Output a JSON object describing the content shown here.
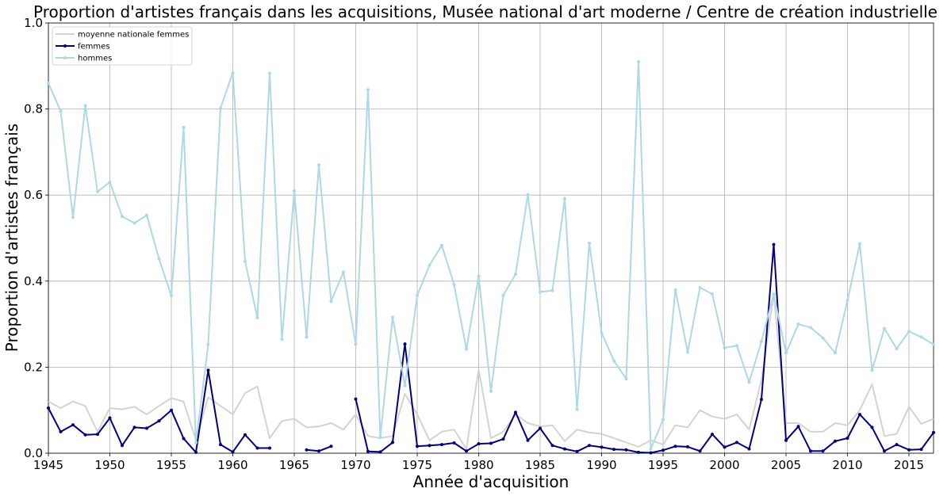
{
  "chart_data": {
    "type": "line",
    "title": "Proportion d'artistes français dans les acquisitions, Musée national d'art moderne / Centre de création industrielle",
    "xlabel": "Année d'acquisition",
    "ylabel": "Proportion d'artistes français",
    "xlim": [
      1945,
      2017
    ],
    "ylim": [
      0,
      1.0
    ],
    "xticks": [
      1945,
      1950,
      1955,
      1960,
      1965,
      1970,
      1975,
      1980,
      1985,
      1990,
      1995,
      2000,
      2005,
      2010,
      2015
    ],
    "xtick_labels": [
      "1945",
      "1950",
      "1955",
      "1960",
      "1965",
      "1970",
      "1975",
      "1980",
      "1985",
      "1990",
      "1995",
      "2000",
      "2005",
      "2010",
      "2015"
    ],
    "yticks": [
      0,
      0.2,
      0.4,
      0.6,
      0.8,
      1.0
    ],
    "ytick_labels": [
      "0.0",
      "0.2",
      "0.4",
      "0.6",
      "0.8",
      "1.0"
    ],
    "grid": true,
    "legend_position": "top-left",
    "series": [
      {
        "name": "moyenne nationale femmes",
        "color": "#d3d3d3",
        "markers": false,
        "x": [
          1945,
          1946,
          1947,
          1948,
          1949,
          1950,
          1951,
          1952,
          1953,
          1954,
          1955,
          1956,
          1957,
          1958,
          1959,
          1960,
          1961,
          1962,
          1963,
          1964,
          1965,
          1966,
          1967,
          1968,
          1969,
          1970,
          1971,
          1972,
          1973,
          1974,
          1975,
          1976,
          1977,
          1978,
          1979,
          1980,
          1981,
          1982,
          1983,
          1984,
          1985,
          1986,
          1987,
          1988,
          1989,
          1990,
          1991,
          1992,
          1993,
          1994,
          1995,
          1996,
          1997,
          1998,
          1999,
          2000,
          2001,
          2002,
          2003,
          2004,
          2005,
          2006,
          2007,
          2008,
          2009,
          2010,
          2011,
          2012,
          2013,
          2014,
          2015,
          2016,
          2017
        ],
        "y": [
          0.12,
          0.105,
          0.12,
          0.11,
          0.05,
          0.105,
          0.102,
          0.108,
          0.09,
          0.11,
          0.128,
          0.12,
          0.03,
          0.13,
          0.11,
          0.09,
          0.14,
          0.155,
          0.035,
          0.075,
          0.08,
          0.06,
          0.062,
          0.07,
          0.055,
          0.09,
          0.04,
          0.035,
          0.04,
          0.138,
          0.09,
          0.03,
          0.05,
          0.055,
          0.01,
          0.195,
          0.035,
          0.05,
          0.09,
          0.07,
          0.062,
          0.065,
          0.028,
          0.055,
          0.048,
          0.045,
          0.035,
          0.025,
          0.015,
          0.03,
          0.02,
          0.065,
          0.06,
          0.1,
          0.085,
          0.08,
          0.09,
          0.055,
          0.17,
          0.37,
          0.07,
          0.07,
          0.05,
          0.05,
          0.07,
          0.065,
          0.1,
          0.16,
          0.04,
          0.045,
          0.108,
          0.068,
          0.08
        ]
      },
      {
        "name": "femmes",
        "color": "#000080",
        "markers": true,
        "x": [
          1945,
          1946,
          1947,
          1948,
          1949,
          1950,
          1951,
          1952,
          1953,
          1954,
          1955,
          1956,
          1957,
          1958,
          1959,
          1960,
          1961,
          1962,
          1963,
          1964,
          1965,
          1966,
          1967,
          1968,
          1969,
          1970,
          1971,
          1972,
          1973,
          1974,
          1975,
          1976,
          1977,
          1978,
          1979,
          1980,
          1981,
          1982,
          1983,
          1984,
          1985,
          1986,
          1987,
          1988,
          1989,
          1990,
          1991,
          1992,
          1993,
          1994,
          1995,
          1996,
          1997,
          1998,
          1999,
          2000,
          2001,
          2002,
          2003,
          2004,
          2005,
          2006,
          2007,
          2008,
          2009,
          2010,
          2011,
          2012,
          2013,
          2014,
          2015,
          2016,
          2017
        ],
        "y": [
          0.105,
          0.05,
          0.066,
          0.043,
          0.044,
          0.082,
          0.018,
          0.06,
          0.058,
          0.075,
          0.1,
          0.034,
          0.002,
          0.193,
          0.02,
          0.003,
          0.043,
          0.012,
          0.012,
          null,
          null,
          0.008,
          0.005,
          0.016,
          null,
          0.126,
          0.004,
          0.003,
          0.025,
          0.254,
          0.016,
          0.018,
          0.02,
          0.024,
          0.005,
          0.022,
          0.023,
          0.033,
          0.095,
          0.03,
          0.058,
          0.018,
          0.01,
          0.004,
          0.018,
          0.014,
          0.009,
          0.008,
          0.002,
          0.001,
          0.007,
          0.016,
          0.015,
          0.005,
          0.044,
          0.014,
          0.025,
          0.01,
          0.125,
          0.485,
          0.03,
          0.062,
          0.005,
          0.005,
          0.028,
          0.035,
          0.09,
          0.06,
          0.005,
          0.02,
          0.008,
          0.009,
          0.048
        ]
      },
      {
        "name": "hommes",
        "color": "#add8e6",
        "markers": true,
        "x": [
          1945,
          1946,
          1947,
          1948,
          1949,
          1950,
          1951,
          1952,
          1953,
          1954,
          1955,
          1956,
          1957,
          1958,
          1959,
          1960,
          1961,
          1962,
          1963,
          1964,
          1965,
          1966,
          1967,
          1968,
          1969,
          1970,
          1971,
          1972,
          1973,
          1974,
          1975,
          1976,
          1977,
          1978,
          1979,
          1980,
          1981,
          1982,
          1983,
          1984,
          1985,
          1986,
          1987,
          1988,
          1989,
          1990,
          1991,
          1992,
          1993,
          1994,
          1995,
          1996,
          1997,
          1998,
          1999,
          2000,
          2001,
          2002,
          2003,
          2004,
          2005,
          2006,
          2007,
          2008,
          2009,
          2010,
          2011,
          2012,
          2013,
          2014,
          2015,
          2016,
          2017
        ],
        "y": [
          0.86,
          0.795,
          0.548,
          0.808,
          0.608,
          0.63,
          0.55,
          0.535,
          0.553,
          0.452,
          0.366,
          0.757,
          0.025,
          0.253,
          0.802,
          0.884,
          0.446,
          0.315,
          0.883,
          0.265,
          0.61,
          0.27,
          0.67,
          0.353,
          0.421,
          0.253,
          0.845,
          0.038,
          0.316,
          0.157,
          0.367,
          0.437,
          0.483,
          0.392,
          0.242,
          0.411,
          0.144,
          0.367,
          0.416,
          0.601,
          0.375,
          0.378,
          0.592,
          0.102,
          0.488,
          0.28,
          0.215,
          0.173,
          0.91,
          0.01,
          0.078,
          0.38,
          0.235,
          0.385,
          0.37,
          0.245,
          0.25,
          0.165,
          0.26,
          0.37,
          0.233,
          0.3,
          0.292,
          0.268,
          0.233,
          0.355,
          0.487,
          0.193,
          0.29,
          0.243,
          0.283,
          0.27,
          0.253
        ]
      }
    ]
  }
}
